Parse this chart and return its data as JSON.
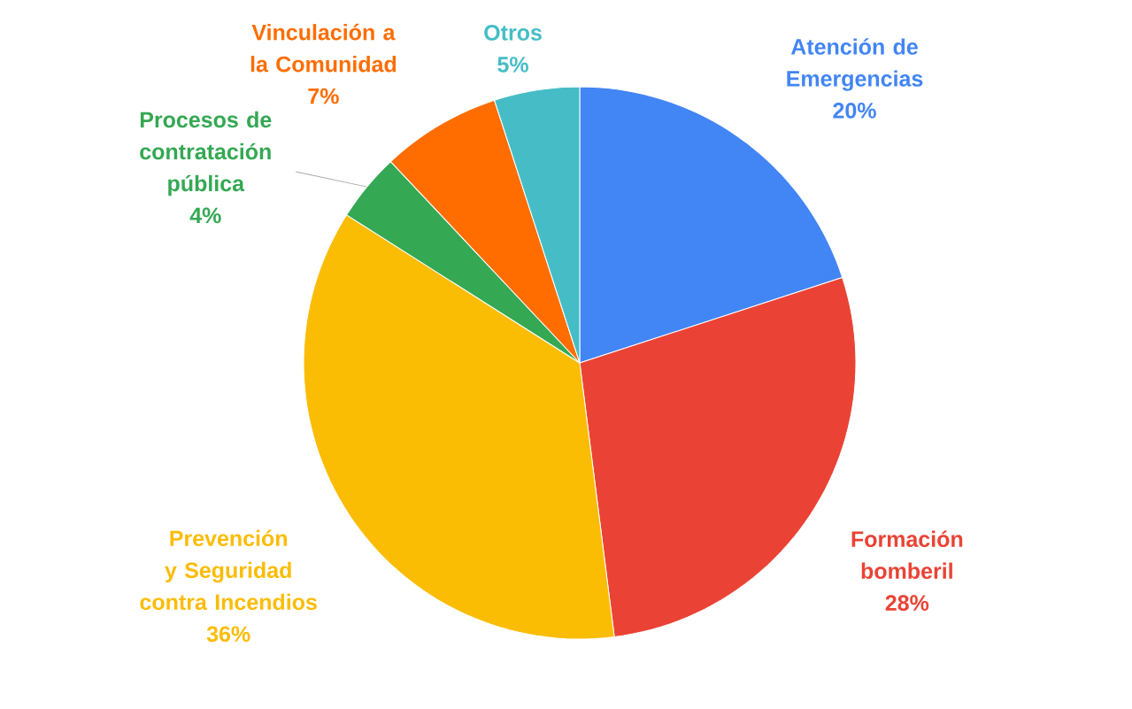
{
  "chart_data": {
    "type": "pie",
    "categories": [
      "Atención de Emergencias",
      "Formación bomberil",
      "Prevención y Seguridad contra Incendios",
      "Procesos de contratación pública",
      "Vinculación a la Comunidad",
      "Otros"
    ],
    "values": [
      20,
      28,
      36,
      4,
      7,
      5
    ],
    "value_labels": [
      "20%",
      "28%",
      "36%",
      "4%",
      "7%",
      "5%"
    ],
    "colors": [
      "#4285f4",
      "#ea4335",
      "#fbbc04",
      "#34a853",
      "#ff6d01",
      "#46bdc6"
    ]
  }
}
